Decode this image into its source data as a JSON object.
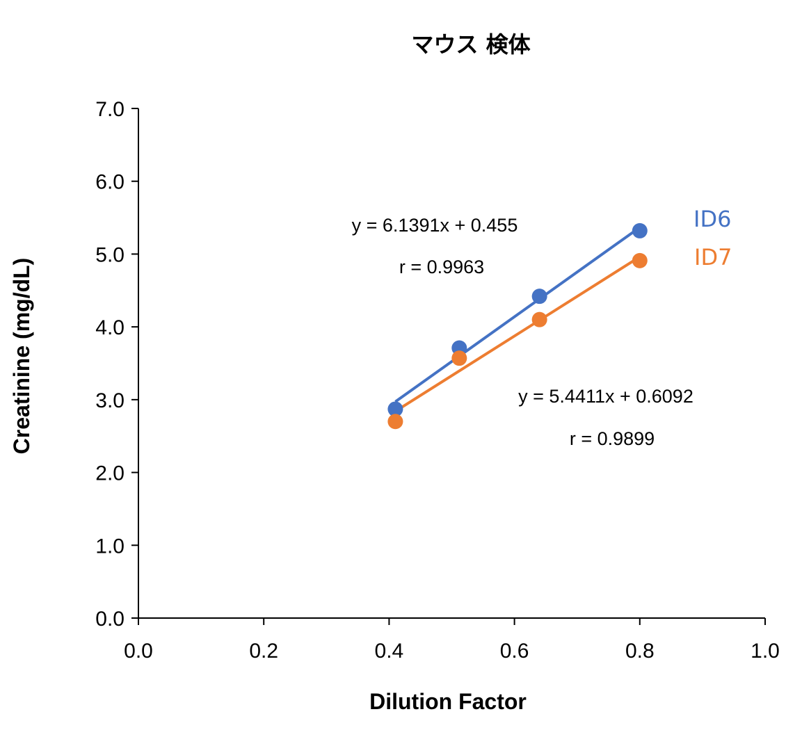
{
  "chart_data": {
    "type": "scatter",
    "title": "マウス 検体",
    "xlabel": "Dilution Factor",
    "ylabel": "Creatinine (mg/dL)",
    "xlim": [
      0.0,
      1.0
    ],
    "ylim": [
      0.0,
      7.0
    ],
    "xticks": [
      "0.0",
      "0.2",
      "0.4",
      "0.6",
      "0.8",
      "1.0"
    ],
    "yticks": [
      "0.0",
      "1.0",
      "2.0",
      "3.0",
      "4.0",
      "5.0",
      "6.0",
      "7.0"
    ],
    "grid": false,
    "series": [
      {
        "name": "ID6",
        "color": "#4472C4",
        "x": [
          0.41,
          0.512,
          0.64,
          0.8
        ],
        "y": [
          2.87,
          3.71,
          4.42,
          5.32
        ],
        "trendline": {
          "slope": 6.1391,
          "intercept": 0.455
        },
        "equation": "y = 6.1391x + 0.455",
        "r_label": "r = 0.9963"
      },
      {
        "name": "ID7",
        "color": "#ED7D31",
        "x": [
          0.41,
          0.512,
          0.64,
          0.8
        ],
        "y": [
          2.7,
          3.57,
          4.1,
          4.91
        ],
        "trendline": {
          "slope": 5.4411,
          "intercept": 0.6092
        },
        "equation": "y = 5.4411x + 0.6092",
        "r_label": "r = 0.9899"
      }
    ]
  }
}
